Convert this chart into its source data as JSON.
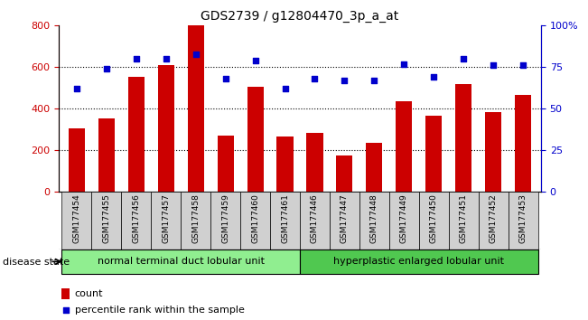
{
  "title": "GDS2739 / g12804470_3p_a_at",
  "samples": [
    "GSM177454",
    "GSM177455",
    "GSM177456",
    "GSM177457",
    "GSM177458",
    "GSM177459",
    "GSM177460",
    "GSM177461",
    "GSM177446",
    "GSM177447",
    "GSM177448",
    "GSM177449",
    "GSM177450",
    "GSM177451",
    "GSM177452",
    "GSM177453"
  ],
  "counts": [
    305,
    355,
    555,
    610,
    800,
    270,
    505,
    265,
    285,
    175,
    238,
    435,
    365,
    520,
    385,
    468
  ],
  "percentiles": [
    62,
    74,
    80,
    80,
    83,
    68,
    79,
    62,
    68,
    67,
    67,
    77,
    69,
    80,
    76,
    76
  ],
  "group1_label": "normal terminal duct lobular unit",
  "group2_label": "hyperplastic enlarged lobular unit",
  "group1_count": 8,
  "group2_count": 8,
  "bar_color": "#cc0000",
  "dot_color": "#0000cc",
  "left_ylim": [
    0,
    800
  ],
  "right_ylim": [
    0,
    100
  ],
  "left_yticks": [
    0,
    200,
    400,
    600,
    800
  ],
  "right_yticks": [
    0,
    25,
    50,
    75,
    100
  ],
  "right_yticklabels": [
    "0",
    "25",
    "50",
    "75",
    "100%"
  ],
  "grid_values": [
    200,
    400,
    600
  ],
  "group1_color": "#90ee90",
  "group2_color": "#50c850",
  "tick_label_bg": "#d0d0d0",
  "disease_state_label": "disease state",
  "legend_count_label": "count",
  "legend_pct_label": "percentile rank within the sample"
}
